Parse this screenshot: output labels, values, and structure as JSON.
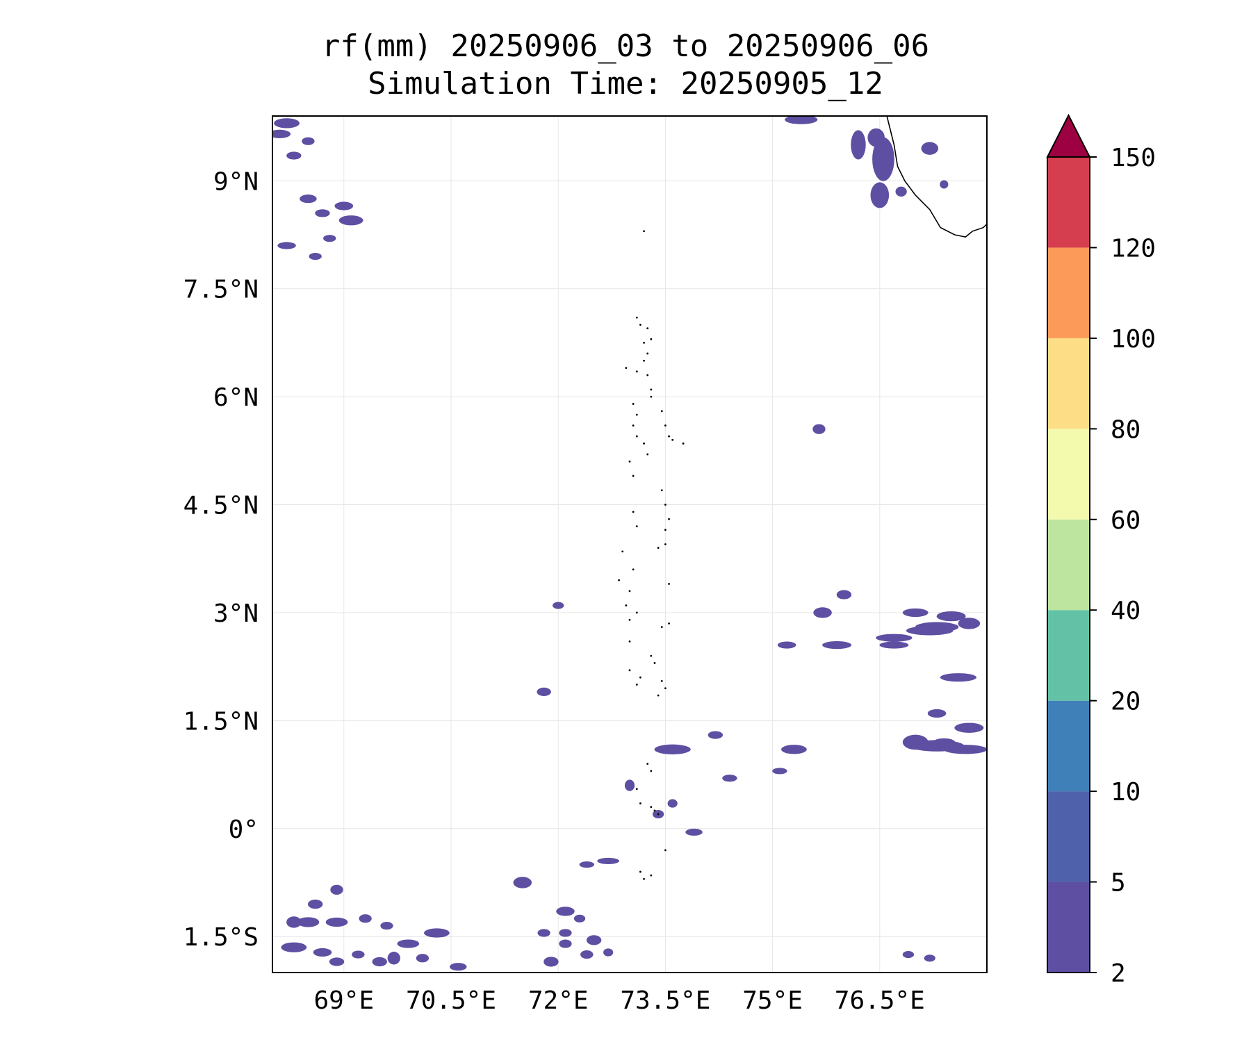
{
  "title": {
    "line1": "rf(mm) 20250906_03 to 20250906_06",
    "line2": "Simulation Time: 20250905_12"
  },
  "map": {
    "lon_range": [
      68.0,
      78.0
    ],
    "lat_range": [
      -2.0,
      9.9
    ],
    "lon_ticks": [
      {
        "value": 69.0,
        "label": "69°E"
      },
      {
        "value": 70.5,
        "label": "70.5°E"
      },
      {
        "value": 72.0,
        "label": "72°E"
      },
      {
        "value": 73.5,
        "label": "73.5°E"
      },
      {
        "value": 75.0,
        "label": "75°E"
      },
      {
        "value": 76.5,
        "label": "76.5°E"
      }
    ],
    "lat_ticks": [
      {
        "value": 9.0,
        "label": "9°N"
      },
      {
        "value": 7.5,
        "label": "7.5°N"
      },
      {
        "value": 6.0,
        "label": "6°N"
      },
      {
        "value": 4.5,
        "label": "4.5°N"
      },
      {
        "value": 3.0,
        "label": "3°N"
      },
      {
        "value": 1.5,
        "label": "1.5°N"
      },
      {
        "value": 0.0,
        "label": "0°"
      },
      {
        "value": -1.5,
        "label": "1.5°S"
      }
    ],
    "grid": true,
    "rain_color": "#5e4fa2",
    "coast_color": "#000000",
    "coastline": [
      [
        76.6,
        9.9
      ],
      [
        76.7,
        9.5
      ],
      [
        76.75,
        9.2
      ],
      [
        76.85,
        9.0
      ],
      [
        77.0,
        8.8
      ],
      [
        77.2,
        8.6
      ],
      [
        77.35,
        8.35
      ],
      [
        77.55,
        8.25
      ],
      [
        77.7,
        8.22
      ],
      [
        77.8,
        8.3
      ],
      [
        77.95,
        8.35
      ],
      [
        78.0,
        8.4
      ]
    ],
    "islands": [
      [
        73.2,
        8.3
      ],
      [
        73.1,
        7.1
      ],
      [
        73.15,
        7.0
      ],
      [
        73.25,
        6.95
      ],
      [
        73.3,
        6.8
      ],
      [
        73.2,
        6.75
      ],
      [
        73.25,
        6.6
      ],
      [
        73.2,
        6.5
      ],
      [
        72.95,
        6.4
      ],
      [
        73.1,
        6.35
      ],
      [
        73.25,
        6.3
      ],
      [
        73.3,
        6.1
      ],
      [
        73.3,
        6.0
      ],
      [
        73.05,
        5.9
      ],
      [
        73.1,
        5.75
      ],
      [
        73.05,
        5.6
      ],
      [
        73.1,
        5.45
      ],
      [
        73.45,
        5.8
      ],
      [
        73.5,
        5.6
      ],
      [
        73.55,
        5.45
      ],
      [
        73.6,
        5.4
      ],
      [
        73.75,
        5.35
      ],
      [
        73.2,
        5.35
      ],
      [
        73.25,
        5.2
      ],
      [
        73.0,
        5.1
      ],
      [
        73.05,
        4.9
      ],
      [
        73.45,
        4.7
      ],
      [
        73.5,
        4.5
      ],
      [
        73.55,
        4.3
      ],
      [
        73.5,
        4.15
      ],
      [
        73.05,
        4.4
      ],
      [
        73.1,
        4.2
      ],
      [
        73.4,
        3.9
      ],
      [
        73.5,
        3.95
      ],
      [
        72.9,
        3.85
      ],
      [
        73.05,
        3.6
      ],
      [
        72.85,
        3.45
      ],
      [
        73.0,
        3.3
      ],
      [
        73.55,
        3.4
      ],
      [
        72.95,
        3.1
      ],
      [
        73.1,
        3.0
      ],
      [
        73.0,
        2.9
      ],
      [
        73.55,
        2.85
      ],
      [
        73.45,
        2.8
      ],
      [
        73.0,
        2.6
      ],
      [
        73.3,
        2.4
      ],
      [
        73.35,
        2.3
      ],
      [
        73.0,
        2.2
      ],
      [
        73.15,
        2.1
      ],
      [
        73.1,
        2.0
      ],
      [
        73.45,
        2.05
      ],
      [
        73.5,
        1.95
      ],
      [
        73.4,
        1.85
      ],
      [
        73.25,
        0.9
      ],
      [
        73.3,
        0.8
      ],
      [
        73.1,
        0.55
      ],
      [
        73.15,
        0.35
      ],
      [
        73.3,
        0.3
      ],
      [
        73.35,
        0.25
      ],
      [
        73.4,
        0.2
      ],
      [
        73.5,
        -0.3
      ],
      [
        73.15,
        -0.6
      ],
      [
        73.2,
        -0.7
      ],
      [
        73.3,
        -0.65
      ]
    ],
    "rain_patches": [
      [
        68.2,
        9.8,
        0.3,
        0.08
      ],
      [
        68.1,
        9.65,
        0.25,
        0.06
      ],
      [
        68.5,
        9.55,
        0.12,
        0.05
      ],
      [
        68.3,
        9.35,
        0.15,
        0.05
      ],
      [
        68.5,
        8.75,
        0.18,
        0.06
      ],
      [
        69.0,
        8.65,
        0.2,
        0.06
      ],
      [
        68.7,
        8.55,
        0.15,
        0.05
      ],
      [
        69.1,
        8.45,
        0.28,
        0.08
      ],
      [
        68.2,
        8.1,
        0.2,
        0.04
      ],
      [
        68.6,
        7.95,
        0.12,
        0.04
      ],
      [
        76.2,
        9.5,
        0.15,
        0.35
      ],
      [
        76.55,
        9.3,
        0.25,
        0.55
      ],
      [
        76.5,
        8.8,
        0.2,
        0.3
      ],
      [
        76.45,
        9.6,
        0.18,
        0.2
      ],
      [
        77.2,
        9.45,
        0.18,
        0.12
      ],
      [
        75.4,
        9.85,
        0.4,
        0.07
      ],
      [
        75.65,
        5.55,
        0.12,
        0.08
      ],
      [
        76.0,
        3.25,
        0.15,
        0.07
      ],
      [
        75.7,
        3.0,
        0.2,
        0.09
      ],
      [
        75.9,
        2.55,
        0.35,
        0.05
      ],
      [
        77.0,
        3.0,
        0.3,
        0.06
      ],
      [
        77.5,
        2.95,
        0.35,
        0.08
      ],
      [
        77.2,
        2.75,
        0.6,
        0.07
      ],
      [
        76.7,
        2.65,
        0.45,
        0.05
      ],
      [
        77.3,
        2.8,
        0.55,
        0.08
      ],
      [
        77.75,
        2.85,
        0.25,
        0.1
      ],
      [
        76.7,
        2.55,
        0.35,
        0.04
      ],
      [
        75.2,
        2.55,
        0.2,
        0.04
      ],
      [
        77.6,
        2.1,
        0.45,
        0.06
      ],
      [
        77.3,
        1.6,
        0.2,
        0.06
      ],
      [
        77.75,
        1.4,
        0.35,
        0.08
      ],
      [
        77.4,
        1.2,
        0.25,
        0.05
      ],
      [
        77.3,
        1.15,
        0.7,
        0.1
      ],
      [
        77.0,
        1.2,
        0.3,
        0.15
      ],
      [
        77.7,
        1.1,
        0.55,
        0.07
      ],
      [
        74.2,
        1.3,
        0.15,
        0.05
      ],
      [
        73.6,
        1.1,
        0.45,
        0.08
      ],
      [
        75.3,
        1.1,
        0.3,
        0.07
      ],
      [
        74.4,
        0.7,
        0.15,
        0.04
      ],
      [
        75.1,
        0.8,
        0.15,
        0.03
      ],
      [
        73.0,
        0.6,
        0.08,
        0.1
      ],
      [
        73.4,
        0.2,
        0.1,
        0.06
      ],
      [
        73.6,
        0.35,
        0.08,
        0.06
      ],
      [
        73.9,
        -0.05,
        0.18,
        0.04
      ],
      [
        71.5,
        -0.75,
        0.2,
        0.1
      ],
      [
        71.8,
        1.9,
        0.14,
        0.06
      ],
      [
        72.0,
        3.1,
        0.1,
        0.04
      ],
      [
        72.4,
        -0.5,
        0.15,
        0.03
      ],
      [
        72.7,
        -0.45,
        0.25,
        0.03
      ],
      [
        68.3,
        -1.3,
        0.15,
        0.1
      ],
      [
        68.6,
        -1.05,
        0.15,
        0.07
      ],
      [
        68.5,
        -1.3,
        0.25,
        0.08
      ],
      [
        68.9,
        -1.3,
        0.25,
        0.07
      ],
      [
        69.3,
        -1.25,
        0.12,
        0.06
      ],
      [
        69.6,
        -1.35,
        0.12,
        0.05
      ],
      [
        69.9,
        -1.6,
        0.25,
        0.06
      ],
      [
        70.3,
        -1.45,
        0.3,
        0.07
      ],
      [
        68.3,
        -1.65,
        0.3,
        0.08
      ],
      [
        68.7,
        -1.72,
        0.2,
        0.06
      ],
      [
        68.9,
        -1.85,
        0.15,
        0.06
      ],
      [
        69.2,
        -1.75,
        0.12,
        0.05
      ],
      [
        69.5,
        -1.85,
        0.15,
        0.07
      ],
      [
        69.7,
        -1.8,
        0.12,
        0.12
      ],
      [
        70.1,
        -1.8,
        0.12,
        0.06
      ],
      [
        70.6,
        -1.92,
        0.18,
        0.05
      ],
      [
        71.8,
        -1.45,
        0.12,
        0.05
      ],
      [
        72.1,
        -1.15,
        0.2,
        0.07
      ],
      [
        72.3,
        -1.25,
        0.1,
        0.05
      ],
      [
        72.1,
        -1.45,
        0.12,
        0.05
      ],
      [
        71.9,
        -1.85,
        0.15,
        0.08
      ],
      [
        72.1,
        -1.6,
        0.12,
        0.06
      ],
      [
        72.5,
        -1.55,
        0.15,
        0.08
      ],
      [
        72.4,
        -1.75,
        0.12,
        0.06
      ],
      [
        72.7,
        -1.72,
        0.08,
        0.05
      ],
      [
        76.9,
        -1.75,
        0.1,
        0.04
      ],
      [
        77.2,
        -1.8,
        0.1,
        0.04
      ],
      [
        68.8,
        8.2,
        0.12,
        0.04
      ],
      [
        68.9,
        -0.85,
        0.12,
        0.08
      ],
      [
        76.8,
        8.85,
        0.1,
        0.08
      ],
      [
        77.4,
        8.95,
        0.06,
        0.06
      ]
    ]
  },
  "colorbar": {
    "levels": [
      2,
      5,
      10,
      20,
      40,
      60,
      80,
      100,
      120,
      150
    ],
    "colors": [
      "#5e4fa2",
      "#4f61aa",
      "#3f80b9",
      "#63c2a6",
      "#bde5a0",
      "#f3f9ad",
      "#fdde87",
      "#fb9a59",
      "#d53e4f"
    ],
    "extend_color": "#9e0142",
    "labels": [
      "2",
      "5",
      "10",
      "20",
      "40",
      "60",
      "80",
      "100",
      "120",
      "150"
    ]
  }
}
